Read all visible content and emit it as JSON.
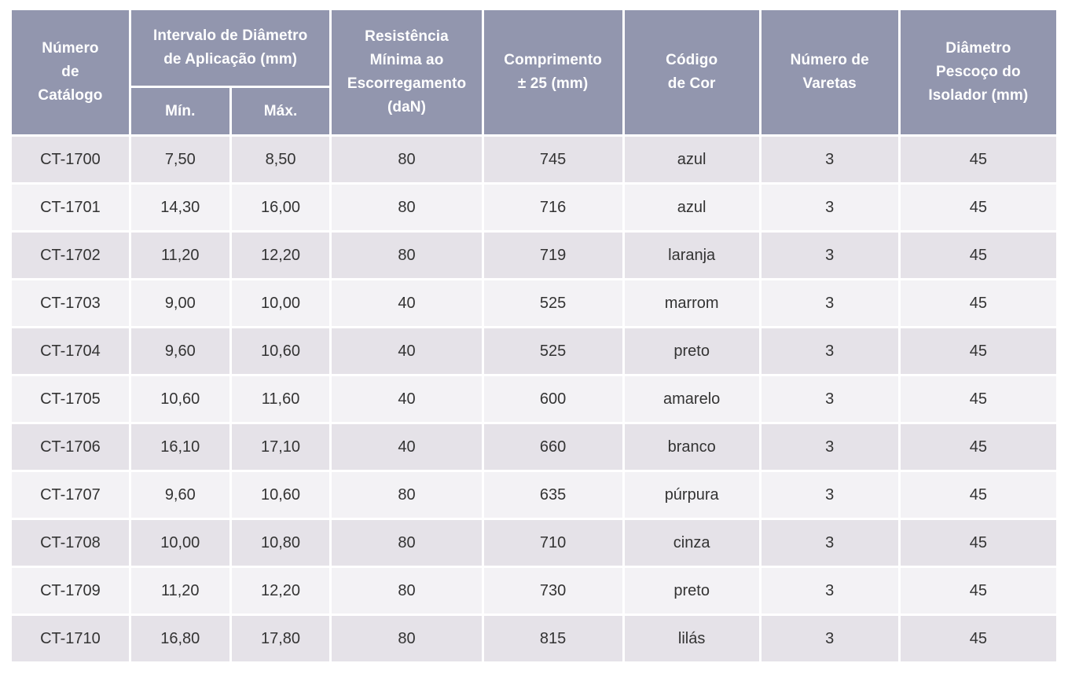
{
  "table": {
    "headers": {
      "catalog": "Número\nde\nCatálogo",
      "diameter_range": "Intervalo de Diâmetro\nde Aplicação (mm)",
      "min": "Mín.",
      "max": "Máx.",
      "slip_resistance": "Resistência\nMínima ao\nEscorregamento\n(daN)",
      "length": "Comprimento\n± 25 (mm)",
      "color_code": "Código\nde Cor",
      "rods": "Número de\nVaretas",
      "neck_diameter": "Diâmetro\nPescoço do\nIsolador (mm)"
    },
    "rows": [
      {
        "catalog": "CT-1700",
        "min": "7,50",
        "max": "8,50",
        "resistance": "80",
        "length": "745",
        "color": "azul",
        "rods": "3",
        "neck": "45"
      },
      {
        "catalog": "CT-1701",
        "min": "14,30",
        "max": "16,00",
        "resistance": "80",
        "length": "716",
        "color": "azul",
        "rods": "3",
        "neck": "45"
      },
      {
        "catalog": "CT-1702",
        "min": "11,20",
        "max": "12,20",
        "resistance": "80",
        "length": "719",
        "color": "laranja",
        "rods": "3",
        "neck": "45"
      },
      {
        "catalog": "CT-1703",
        "min": "9,00",
        "max": "10,00",
        "resistance": "40",
        "length": "525",
        "color": "marrom",
        "rods": "3",
        "neck": "45"
      },
      {
        "catalog": "CT-1704",
        "min": "9,60",
        "max": "10,60",
        "resistance": "40",
        "length": "525",
        "color": "preto",
        "rods": "3",
        "neck": "45"
      },
      {
        "catalog": "CT-1705",
        "min": "10,60",
        "max": "11,60",
        "resistance": "40",
        "length": "600",
        "color": "amarelo",
        "rods": "3",
        "neck": "45"
      },
      {
        "catalog": "CT-1706",
        "min": "16,10",
        "max": "17,10",
        "resistance": "40",
        "length": "660",
        "color": "branco",
        "rods": "3",
        "neck": "45"
      },
      {
        "catalog": "CT-1707",
        "min": "9,60",
        "max": "10,60",
        "resistance": "80",
        "length": "635",
        "color": "púrpura",
        "rods": "3",
        "neck": "45"
      },
      {
        "catalog": "CT-1708",
        "min": "10,00",
        "max": "10,80",
        "resistance": "80",
        "length": "710",
        "color": "cinza",
        "rods": "3",
        "neck": "45"
      },
      {
        "catalog": "CT-1709",
        "min": "11,20",
        "max": "12,20",
        "resistance": "80",
        "length": "730",
        "color": "preto",
        "rods": "3",
        "neck": "45"
      },
      {
        "catalog": "CT-1710",
        "min": "16,80",
        "max": "17,80",
        "resistance": "80",
        "length": "815",
        "color": "lilás",
        "rods": "3",
        "neck": "45"
      }
    ]
  },
  "colors": {
    "header_bg": "#9296ae",
    "header_text": "#ffffff",
    "row_odd_bg": "#e5e2e8",
    "row_even_bg": "#f3f2f5",
    "cell_text": "#333333"
  }
}
